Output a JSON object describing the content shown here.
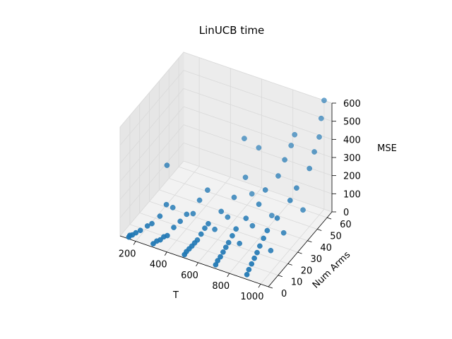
{
  "chart_data": {
    "type": "scatter",
    "projection": "3d",
    "title": "LinUCB time",
    "xlabel": "T",
    "ylabel": "Num Arms",
    "zlabel": "MSE",
    "xlim": [
      100,
      1050
    ],
    "ylim": [
      0,
      65
    ],
    "zlim": [
      0,
      600
    ],
    "xticks": [
      "200",
      "400",
      "600",
      "800",
      "1000"
    ],
    "yticks": [
      "0",
      "10",
      "20",
      "30",
      "40",
      "50",
      "60"
    ],
    "zticks": [
      "0",
      "100",
      "200",
      "300",
      "400",
      "500",
      "600"
    ],
    "grid": true,
    "marker_color": "#1f77b4",
    "pane_color": "#f2f2f2",
    "grid_color": "#d9d9d9",
    "points": [
      {
        "x": 150,
        "y": 1,
        "z": 2
      },
      {
        "x": 150,
        "y": 2,
        "z": 5
      },
      {
        "x": 160,
        "y": 3,
        "z": 4
      },
      {
        "x": 170,
        "y": 5,
        "z": 6
      },
      {
        "x": 180,
        "y": 8,
        "z": 3
      },
      {
        "x": 200,
        "y": 12,
        "z": 8
      },
      {
        "x": 210,
        "y": 15,
        "z": 5
      },
      {
        "x": 230,
        "y": 20,
        "z": 20
      },
      {
        "x": 240,
        "y": 25,
        "z": 55
      },
      {
        "x": 250,
        "y": 30,
        "z": 10
      },
      {
        "x": 150,
        "y": 40,
        "z": 150
      },
      {
        "x": 300,
        "y": 2,
        "z": 3
      },
      {
        "x": 310,
        "y": 4,
        "z": 8
      },
      {
        "x": 320,
        "y": 6,
        "z": 5
      },
      {
        "x": 330,
        "y": 8,
        "z": 12
      },
      {
        "x": 340,
        "y": 10,
        "z": 9
      },
      {
        "x": 350,
        "y": 15,
        "z": 25
      },
      {
        "x": 360,
        "y": 20,
        "z": 30
      },
      {
        "x": 370,
        "y": 25,
        "z": 40
      },
      {
        "x": 380,
        "y": 30,
        "z": 15
      },
      {
        "x": 390,
        "y": 35,
        "z": 60
      },
      {
        "x": 410,
        "y": 40,
        "z": 90
      },
      {
        "x": 500,
        "y": 2,
        "z": 2
      },
      {
        "x": 500,
        "y": 4,
        "z": 6
      },
      {
        "x": 505,
        "y": 6,
        "z": 10
      },
      {
        "x": 510,
        "y": 8,
        "z": 14
      },
      {
        "x": 515,
        "y": 10,
        "z": 20
      },
      {
        "x": 520,
        "y": 12,
        "z": 25
      },
      {
        "x": 525,
        "y": 15,
        "z": 40
      },
      {
        "x": 530,
        "y": 18,
        "z": 55
      },
      {
        "x": 540,
        "y": 20,
        "z": 70
      },
      {
        "x": 550,
        "y": 25,
        "z": 10
      },
      {
        "x": 560,
        "y": 30,
        "z": 80
      },
      {
        "x": 570,
        "y": 35,
        "z": 20
      },
      {
        "x": 580,
        "y": 40,
        "z": 100
      },
      {
        "x": 590,
        "y": 50,
        "z": 150
      },
      {
        "x": 600,
        "y": 55,
        "z": 30
      },
      {
        "x": 520,
        "y": 60,
        "z": 280
      },
      {
        "x": 600,
        "y": 62,
        "z": 240
      },
      {
        "x": 700,
        "y": 2,
        "z": 5
      },
      {
        "x": 700,
        "y": 4,
        "z": 15
      },
      {
        "x": 705,
        "y": 6,
        "z": 25
      },
      {
        "x": 710,
        "y": 8,
        "z": 40
      },
      {
        "x": 715,
        "y": 10,
        "z": 55
      },
      {
        "x": 720,
        "y": 12,
        "z": 70
      },
      {
        "x": 725,
        "y": 15,
        "z": 90
      },
      {
        "x": 730,
        "y": 18,
        "z": 110
      },
      {
        "x": 740,
        "y": 20,
        "z": 20
      },
      {
        "x": 750,
        "y": 25,
        "z": 130
      },
      {
        "x": 760,
        "y": 30,
        "z": 60
      },
      {
        "x": 770,
        "y": 35,
        "z": 150
      },
      {
        "x": 780,
        "y": 40,
        "z": 200
      },
      {
        "x": 790,
        "y": 45,
        "z": 30
      },
      {
        "x": 800,
        "y": 50,
        "z": 220
      },
      {
        "x": 810,
        "y": 55,
        "z": 280
      },
      {
        "x": 820,
        "y": 60,
        "z": 330
      },
      {
        "x": 830,
        "y": 62,
        "z": 380
      },
      {
        "x": 900,
        "y": 2,
        "z": 10
      },
      {
        "x": 900,
        "y": 4,
        "z": 25
      },
      {
        "x": 905,
        "y": 6,
        "z": 45
      },
      {
        "x": 910,
        "y": 8,
        "z": 65
      },
      {
        "x": 915,
        "y": 10,
        "z": 85
      },
      {
        "x": 920,
        "y": 12,
        "z": 110
      },
      {
        "x": 925,
        "y": 15,
        "z": 135
      },
      {
        "x": 930,
        "y": 18,
        "z": 160
      },
      {
        "x": 940,
        "y": 20,
        "z": 40
      },
      {
        "x": 950,
        "y": 25,
        "z": 190
      },
      {
        "x": 960,
        "y": 30,
        "z": 80
      },
      {
        "x": 970,
        "y": 35,
        "z": 230
      },
      {
        "x": 980,
        "y": 40,
        "z": 270
      },
      {
        "x": 990,
        "y": 45,
        "z": 120
      },
      {
        "x": 1000,
        "y": 50,
        "z": 320
      },
      {
        "x": 1000,
        "y": 55,
        "z": 380
      },
      {
        "x": 1000,
        "y": 60,
        "z": 430
      },
      {
        "x": 1000,
        "y": 62,
        "z": 520
      },
      {
        "x": 1000,
        "y": 65,
        "z": 600
      }
    ]
  }
}
